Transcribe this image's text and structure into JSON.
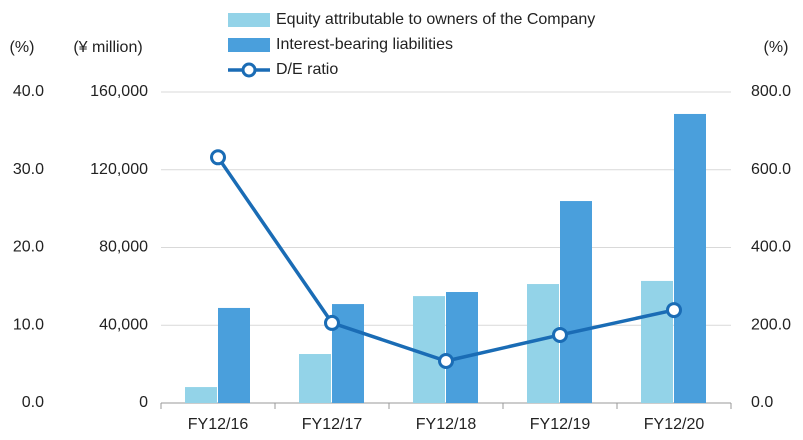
{
  "chart_data": {
    "type": "bar",
    "categories": [
      "FY12/16",
      "FY12/17",
      "FY12/18",
      "FY12/19",
      "FY12/20"
    ],
    "series": [
      {
        "name": "Equity attributable to owners of the Company",
        "color": "#93d3e8",
        "type": "bar",
        "values": [
          8200,
          25200,
          55000,
          61200,
          62800
        ]
      },
      {
        "name": "Interest-bearing liabilities",
        "color": "#4a9fdc",
        "type": "bar",
        "values": [
          48900,
          50900,
          57100,
          103900,
          148700
        ]
      },
      {
        "name": "D/E ratio",
        "color": "#1a6cb5",
        "type": "line",
        "axis": "y2",
        "values": [
          632,
          206,
          108,
          175,
          239
        ]
      }
    ],
    "ylabel": "(¥ million)",
    "ylim": [
      0,
      160000
    ],
    "yticks": [
      0,
      {
        "value": 40000,
        "label": "40,000"
      },
      {
        "value": 80000,
        "label": "80,000"
      },
      {
        "value": 120000,
        "label": "120,000"
      },
      {
        "value": 160000,
        "label": "160,000"
      }
    ],
    "y2label": "(%)",
    "y2lim": [
      0,
      800
    ],
    "y2ticks": [
      {
        "value": 0,
        "label": "0.0"
      },
      {
        "value": 200,
        "label": "200.0"
      },
      {
        "value": 400,
        "label": "400.0"
      },
      {
        "value": 600,
        "label": "600.0"
      },
      {
        "value": 800,
        "label": "800.0"
      }
    ],
    "y3label": "(%)",
    "y3lim": [
      0,
      40
    ],
    "y3ticks": [
      {
        "value": 0,
        "label": "0.0"
      },
      {
        "value": 10,
        "label": "10.0"
      },
      {
        "value": 20,
        "label": "20.0"
      },
      {
        "value": 30,
        "label": "30.0"
      },
      {
        "value": 40,
        "label": "40.0"
      }
    ],
    "grid": true
  }
}
